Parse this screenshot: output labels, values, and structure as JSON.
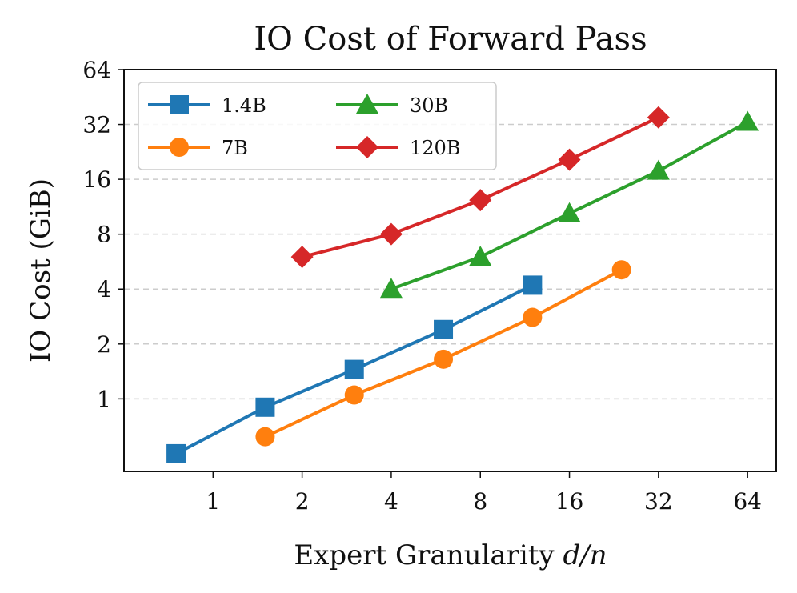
{
  "chart_data": {
    "type": "line",
    "title": "IO Cost of Forward Pass",
    "xlabel": "Expert Granularity d/n",
    "xlabel_plain": "Expert Granularity ",
    "xlabel_math": "d/n",
    "ylabel": "IO Cost (GiB)",
    "xscale": "log2",
    "yscale": "log2",
    "xlim": [
      0.5,
      80
    ],
    "ylim": [
      0.4,
      64
    ],
    "xticks": [
      1,
      2,
      4,
      8,
      16,
      32,
      64
    ],
    "xtick_labels": [
      "1",
      "2",
      "4",
      "8",
      "16",
      "32",
      "64"
    ],
    "yticks": [
      1,
      2,
      4,
      8,
      16,
      32,
      64
    ],
    "ytick_labels": [
      "1",
      "2",
      "4",
      "8",
      "16",
      "32",
      "64"
    ],
    "grid": "y-dashed",
    "legend_position": "top-left",
    "series": [
      {
        "name": "1.4B",
        "color": "#1f77b4",
        "marker": "square",
        "x": [
          0.75,
          1.5,
          3,
          6,
          12
        ],
        "y": [
          0.5,
          0.9,
          1.45,
          2.4,
          4.2
        ]
      },
      {
        "name": "7B",
        "color": "#ff7f0e",
        "marker": "circle",
        "x": [
          1.5,
          3,
          6,
          12,
          24
        ],
        "y": [
          0.62,
          1.05,
          1.65,
          2.8,
          5.1
        ]
      },
      {
        "name": "30B",
        "color": "#2ca02c",
        "marker": "triangle",
        "x": [
          4,
          8,
          16,
          32,
          64
        ],
        "y": [
          4.0,
          6.0,
          10.4,
          17.8,
          33.0
        ]
      },
      {
        "name": "120B",
        "color": "#d62728",
        "marker": "diamond",
        "x": [
          2,
          4,
          8,
          16,
          32
        ],
        "y": [
          6.0,
          8.0,
          12.3,
          20.5,
          35.0
        ]
      }
    ]
  }
}
